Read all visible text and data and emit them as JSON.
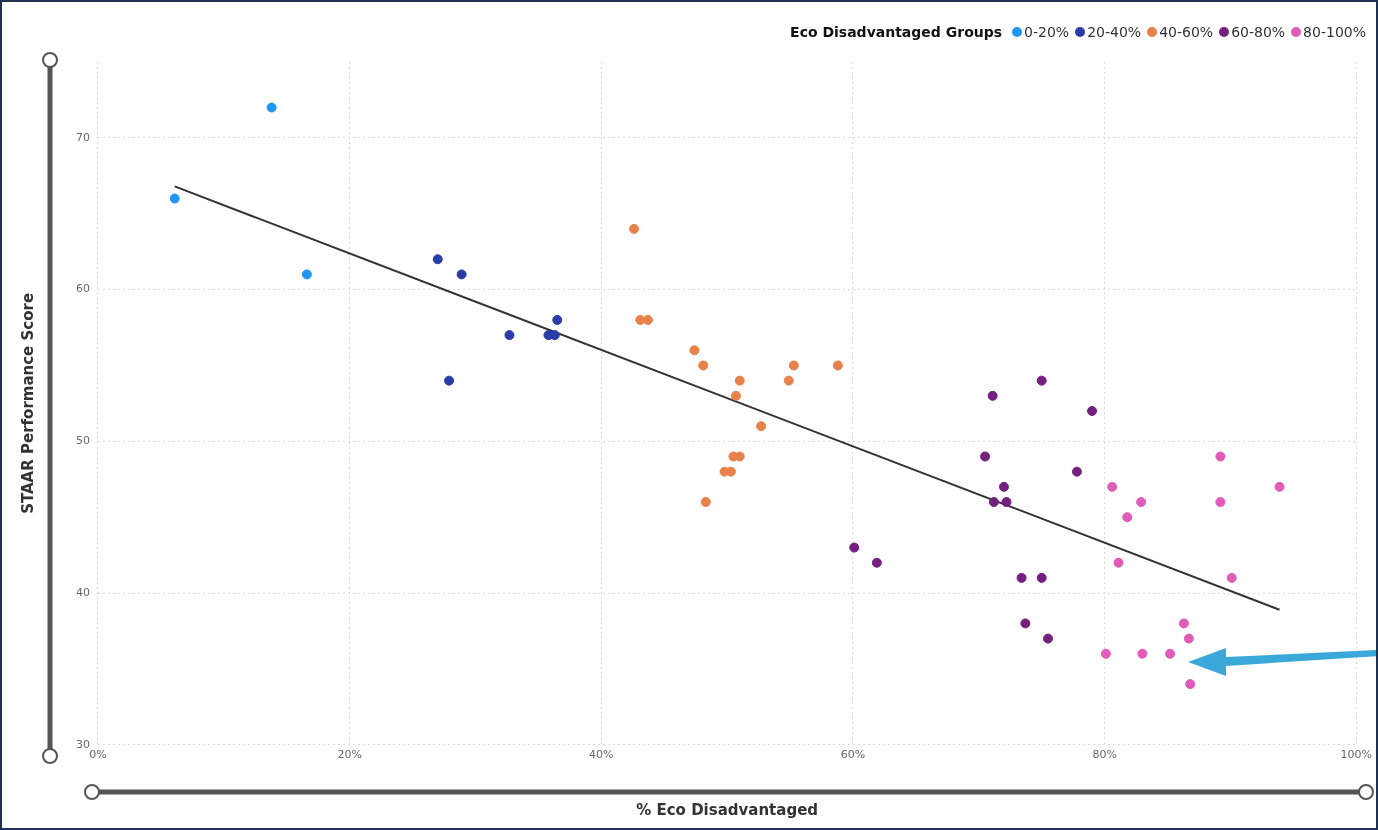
{
  "chart_data": {
    "type": "scatter",
    "xlabel": "% Eco Disadvantaged",
    "ylabel": "STAAR Performance Score",
    "legend_title": "Eco Disadvantaged Groups",
    "legend": "top right",
    "grid": true,
    "marker": "circle",
    "xlim": [
      0,
      100
    ],
    "xticks": [
      {
        "value": 0,
        "label": "0%"
      },
      {
        "value": 20,
        "label": "20%"
      },
      {
        "value": 40,
        "label": "40%"
      },
      {
        "value": 60,
        "label": "60%"
      },
      {
        "value": 80,
        "label": "80%"
      },
      {
        "value": 100,
        "label": "100%"
      }
    ],
    "ylim": [
      30,
      75
    ],
    "yticks": [
      30,
      40,
      50,
      60,
      70
    ],
    "series": [
      {
        "name": "0-20%",
        "color": "#2196f3",
        "x": [
          6.1,
          13.8,
          16.6
        ],
        "values": [
          66,
          72,
          61
        ]
      },
      {
        "name": "20-40%",
        "color": "#2a3ca8",
        "x": [
          27.0,
          28.9,
          27.9,
          32.7,
          35.8,
          36.3,
          36.5
        ],
        "values": [
          62,
          61,
          54,
          57,
          57,
          57,
          58
        ]
      },
      {
        "name": "40-60%",
        "color": "#e8814a",
        "x": [
          42.6,
          43.1,
          43.7,
          47.4,
          48.1,
          51.0,
          50.7,
          52.7,
          50.5,
          51.0,
          49.8,
          50.3,
          48.3,
          54.9,
          55.3,
          58.8
        ],
        "values": [
          64,
          58,
          58,
          56,
          55,
          54,
          53,
          51,
          49,
          49,
          48,
          48,
          46,
          54,
          55,
          55
        ]
      },
      {
        "name": "60-80%",
        "color": "#74207f",
        "x": [
          75.0,
          71.1,
          79.0,
          70.5,
          77.8,
          72.0,
          71.2,
          72.2,
          60.1,
          61.9,
          73.4,
          75.0,
          73.7,
          75.5
        ],
        "values": [
          54,
          53,
          52,
          49,
          48,
          47,
          46,
          46,
          43,
          42,
          41,
          41,
          38,
          37
        ]
      },
      {
        "name": "80-100%",
        "color": "#e05cb8",
        "x": [
          89.2,
          80.6,
          93.9,
          82.9,
          89.2,
          81.8,
          81.1,
          90.1,
          86.3,
          86.7,
          80.1,
          83.0,
          85.2,
          86.8
        ],
        "values": [
          49,
          47,
          47,
          46,
          46,
          45,
          42,
          41,
          38,
          37,
          36,
          36,
          36,
          34
        ]
      },
      {
        "type": "line",
        "marker": "none",
        "color": "#333333",
        "x": [
          6.1,
          93.9
        ],
        "values": [
          66.8,
          38.9
        ]
      }
    ]
  }
}
